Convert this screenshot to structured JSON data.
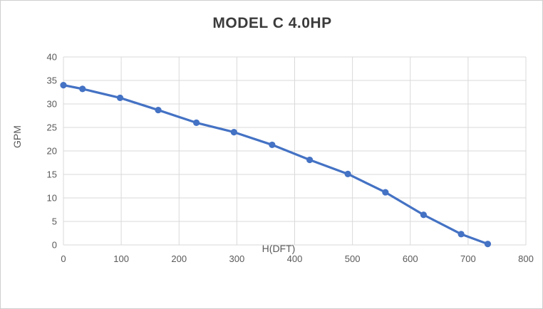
{
  "window": {
    "background_color": "#ffffff",
    "border_color": "#cfcfcf"
  },
  "chart_data": {
    "type": "line",
    "title": "MODEL C 4.0HP",
    "xlabel": "H(DFT)",
    "ylabel": "GPM",
    "x": [
      0,
      33,
      98,
      164,
      230,
      295,
      361,
      426,
      492,
      557,
      623,
      688,
      734
    ],
    "y": [
      34,
      33.2,
      31.3,
      28.7,
      26,
      24,
      21.3,
      18.1,
      15.1,
      11.2,
      6.4,
      2.3,
      0.2
    ],
    "xlim": [
      0,
      800
    ],
    "ylim": [
      0,
      40
    ],
    "x_ticks": [
      0,
      100,
      200,
      300,
      400,
      500,
      600,
      700,
      800
    ],
    "y_ticks": [
      0,
      5,
      10,
      15,
      20,
      25,
      30,
      35,
      40
    ],
    "grid": true,
    "legend": "none",
    "marker": "circle",
    "series_color": "#4472C4",
    "gridline_color": "#D9D9D9",
    "tick_label_color": "#595959",
    "title_color": "#3b3b3b"
  }
}
